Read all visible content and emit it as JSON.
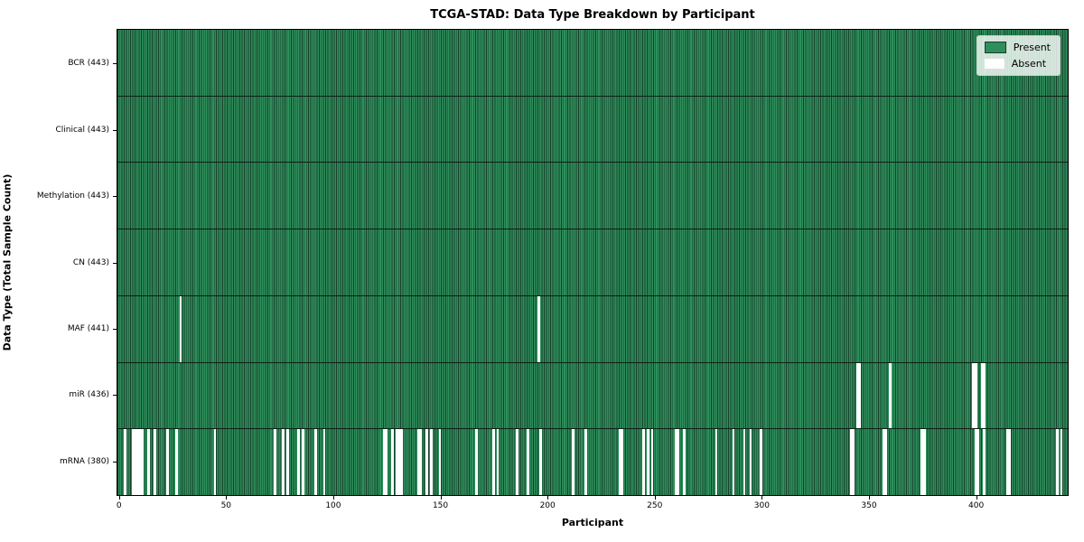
{
  "chart_data": {
    "type": "heatmap",
    "title": "TCGA-STAD: Data Type Breakdown by Participant",
    "xlabel": "Participant",
    "ylabel": "Data Type (Total Sample Count)",
    "n_participants": 443,
    "x_ticks": [
      0,
      50,
      100,
      150,
      200,
      250,
      300,
      350,
      400
    ],
    "grid": false,
    "legend_position": "upper right",
    "legend": [
      {
        "label": "Present",
        "color": "#2e8f5c"
      },
      {
        "label": "Absent",
        "color": "#ffffff"
      }
    ],
    "rows": [
      {
        "label": "BCR (443)",
        "data_type": "BCR",
        "present_count": 443,
        "absent_participants": []
      },
      {
        "label": "Clinical (443)",
        "data_type": "Clinical",
        "present_count": 443,
        "absent_participants": []
      },
      {
        "label": "Methylation (443)",
        "data_type": "Methylation",
        "present_count": 443,
        "absent_participants": []
      },
      {
        "label": "CN (443)",
        "data_type": "CN",
        "present_count": 443,
        "absent_participants": []
      },
      {
        "label": "MAF (441)",
        "data_type": "MAF",
        "present_count": 441,
        "absent_participants": [
          29,
          196
        ]
      },
      {
        "label": "miR (436)",
        "data_type": "miR",
        "present_count": 436,
        "absent_participants": [
          345,
          346,
          360,
          399,
          400,
          403,
          404
        ]
      },
      {
        "label": "mRNA (380)",
        "data_type": "mRNA",
        "present_count": 380,
        "absent_participants": [
          3,
          7,
          8,
          9,
          10,
          11,
          14,
          17,
          23,
          27,
          45,
          73,
          77,
          79,
          84,
          86,
          92,
          96,
          124,
          125,
          128,
          130,
          131,
          132,
          140,
          141,
          144,
          146,
          150,
          167,
          175,
          177,
          186,
          191,
          197,
          212,
          218,
          234,
          235,
          245,
          247,
          249,
          260,
          261,
          264,
          279,
          287,
          292,
          295,
          300,
          342,
          343,
          357,
          358,
          375,
          376,
          400,
          401,
          404,
          415,
          416,
          438,
          440
        ]
      }
    ],
    "colors": {
      "present_fill": "#2e8f5c",
      "bar_edge": "#16402a",
      "absent_fill": "#ffffff",
      "plot_border": "#000000",
      "legend_border": "#c7cfc7"
    }
  }
}
